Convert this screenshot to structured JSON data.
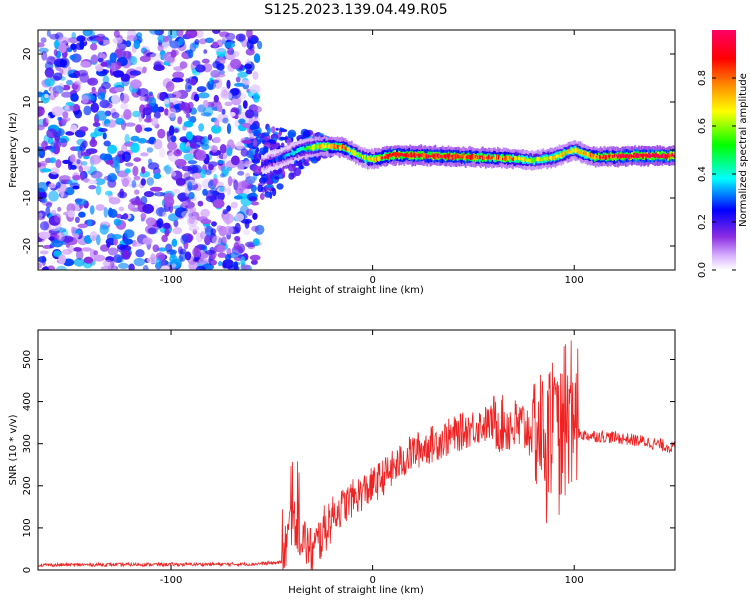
{
  "title": "S125.2023.139.04.49.R05",
  "chart_data": [
    {
      "type": "heatmap",
      "xlabel": "Height of straight line (km)",
      "ylabel": "Frequency (Hz)",
      "xlim": [
        -166,
        150
      ],
      "ylim": [
        -25,
        25
      ],
      "x_ticks": [
        -100,
        0,
        100
      ],
      "y_ticks": [
        -20,
        -10,
        0,
        10,
        20
      ],
      "colorbar": {
        "label": "Normalized spectral amplitude",
        "range": [
          0,
          1
        ],
        "ticks": [
          "0.0",
          "0.2",
          "0.4",
          "0.6",
          "0.8"
        ],
        "colors": [
          "#ffffff",
          "#8a2be2",
          "#0000ff",
          "#00ffff",
          "#00ff00",
          "#ffff00",
          "#ff8000",
          "#ff0000",
          "#ff0080"
        ]
      },
      "ridge": {
        "x": [
          -55,
          -45,
          -35,
          -25,
          -15,
          -5,
          0,
          10,
          30,
          50,
          70,
          80,
          90,
          100,
          110,
          130,
          150
        ],
        "freq_hz": [
          -3,
          -1.5,
          0.2,
          0.8,
          0.6,
          -1.5,
          -2,
          -1,
          -1.2,
          -1.5,
          -1.8,
          -2.2,
          -1.5,
          0,
          -1.5,
          -1.2,
          -1.2
        ],
        "amplitude": [
          0.2,
          0.3,
          0.45,
          0.7,
          0.8,
          0.6,
          0.7,
          0.9,
          0.9,
          0.85,
          0.75,
          0.6,
          0.7,
          0.65,
          0.8,
          0.95,
          0.95
        ]
      },
      "noise_region": {
        "x": [
          -166,
          -60
        ],
        "amplitude": [
          0.1,
          0.3
        ]
      }
    },
    {
      "type": "line",
      "xlabel": "Height of straight line (km)",
      "ylabel": "SNR (10 * v/v)",
      "xlim": [
        -166,
        150
      ],
      "ylim": [
        0,
        570
      ],
      "x_ticks": [
        -100,
        0,
        100
      ],
      "y_ticks": [
        0,
        100,
        200,
        300,
        400,
        500
      ],
      "color": "#ee2222",
      "series_trend": {
        "x": [
          -166,
          -60,
          -45,
          -40,
          -30,
          -20,
          -10,
          0,
          10,
          20,
          30,
          40,
          50,
          60,
          70,
          80,
          90,
          100,
          105,
          120,
          135,
          150
        ],
        "y": [
          12,
          14,
          18,
          120,
          40,
          130,
          170,
          200,
          240,
          280,
          300,
          320,
          340,
          350,
          340,
          335,
          320,
          330,
          320,
          315,
          305,
          290
        ]
      }
    }
  ]
}
